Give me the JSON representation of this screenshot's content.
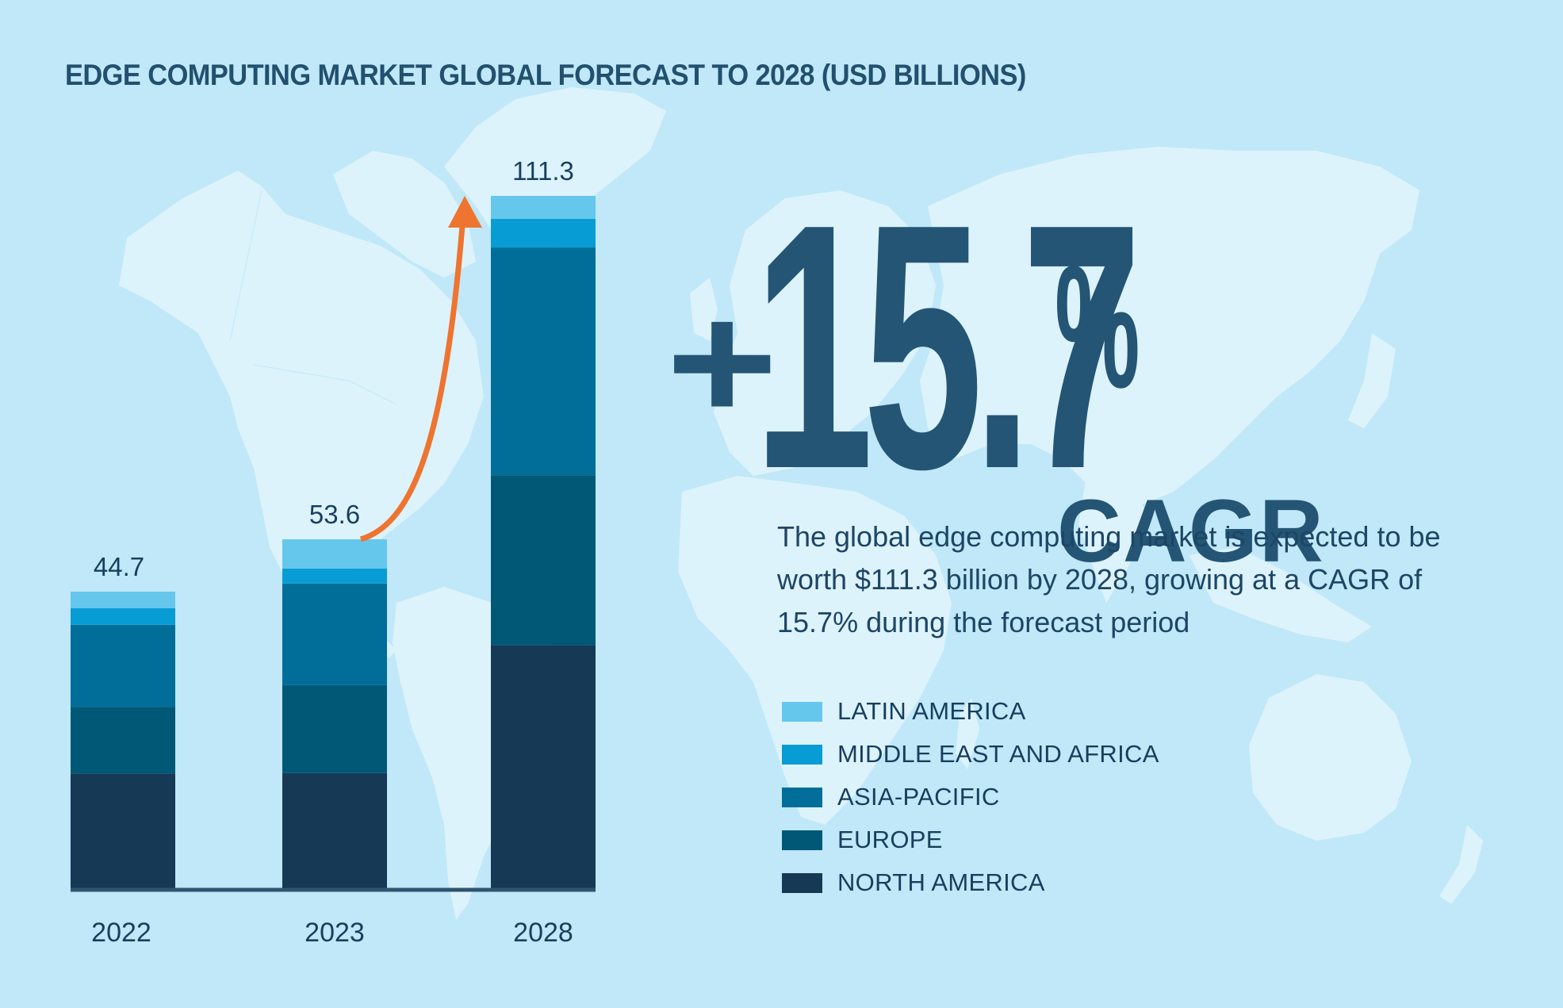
{
  "title": "EDGE COMPUTING MARKET GLOBAL FORECAST TO 2028 (USD BILLIONS)",
  "highlight": {
    "plus": "+",
    "value": "15.7",
    "percent": "%",
    "label": "CAGR"
  },
  "description": "The global edge computing market is expected to be worth $111.3 billion by 2028, growing at a CAGR of 15.7% during the forecast period",
  "colors": {
    "background": "#C0E8F8",
    "land": "#DDF3FC",
    "text": "#1D4565",
    "axis": "#2F5470",
    "arrow": "#EE7430"
  },
  "chart_data": {
    "type": "bar",
    "stacked": true,
    "title": "EDGE COMPUTING MARKET GLOBAL FORECAST TO 2028 (USD BILLIONS)",
    "xlabel": "",
    "ylabel": "USD Billions",
    "categories": [
      "2022",
      "2023",
      "2028"
    ],
    "totals": [
      44.7,
      53.6,
      111.3
    ],
    "total_labels": [
      "44.7",
      "53.6",
      "111.3"
    ],
    "series": [
      {
        "name": "NORTH AMERICA",
        "color": "#163955",
        "values": [
          17.3,
          17.7,
          39.1
        ]
      },
      {
        "name": "EUROPE",
        "color": "#005877",
        "values": [
          10.0,
          13.5,
          27.3
        ]
      },
      {
        "name": "ASIA-PACIFIC",
        "color": "#006E99",
        "values": [
          12.4,
          15.6,
          36.6
        ]
      },
      {
        "name": "MIDDLE EAST AND AFRICA",
        "color": "#079CD4",
        "values": [
          2.5,
          2.3,
          4.6
        ]
      },
      {
        "name": "LATIN AMERICA",
        "color": "#66C7EC",
        "values": [
          2.5,
          4.5,
          3.7
        ]
      }
    ],
    "legend_order": [
      "LATIN AMERICA",
      "MIDDLE EAST AND AFRICA",
      "ASIA-PACIFIC",
      "EUROPE",
      "NORTH AMERICA"
    ],
    "legend_position": "right",
    "annotation": {
      "type": "arrow",
      "from": "2023",
      "to": "2028",
      "label": "+15.7% CAGR"
    },
    "grid": false,
    "ylim": [
      0,
      111.3
    ]
  }
}
